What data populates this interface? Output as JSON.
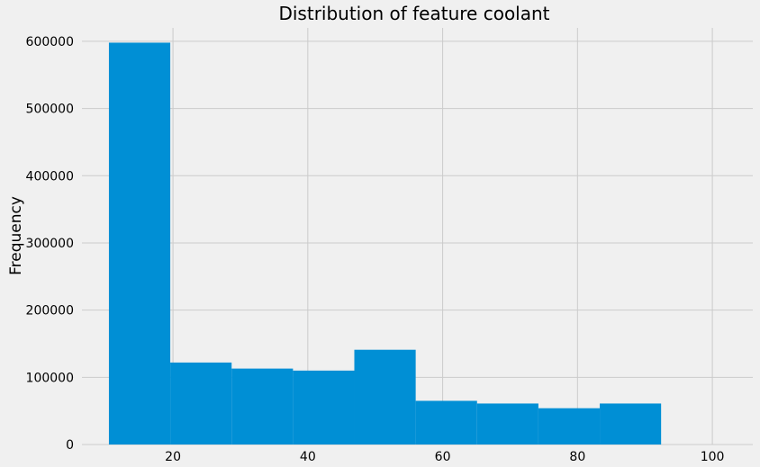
{
  "chart_data": {
    "type": "bar",
    "subtype": "histogram",
    "title": "Distribution of feature coolant",
    "xlabel": "",
    "ylabel": "Frequency",
    "xlim": [
      6.5,
      106
    ],
    "ylim": [
      0,
      620000
    ],
    "x_ticks": [
      20,
      40,
      60,
      80,
      100
    ],
    "y_ticks": [
      0,
      100000,
      200000,
      300000,
      400000,
      500000,
      600000
    ],
    "bin_edges": [
      10.5,
      19.6,
      28.7,
      37.8,
      46.9,
      56.0,
      65.1,
      74.2,
      83.3,
      92.4
    ],
    "values": [
      598000,
      122000,
      113000,
      110000,
      141000,
      65000,
      61000,
      54000,
      61000
    ],
    "color": "#008fd5",
    "grid": true,
    "legend": "none"
  }
}
